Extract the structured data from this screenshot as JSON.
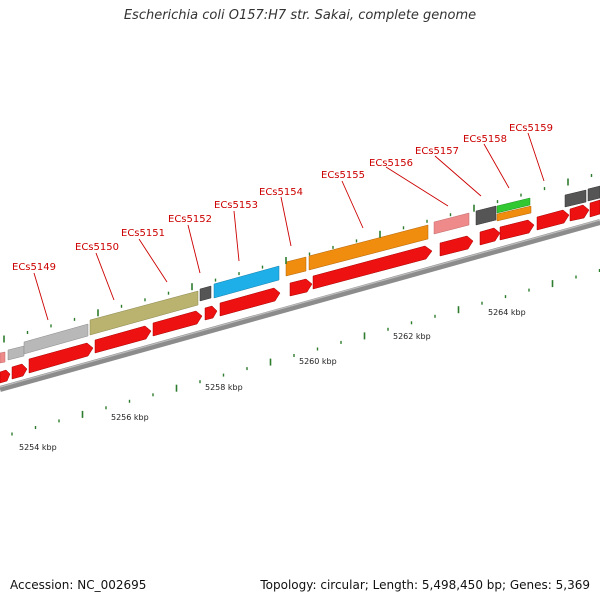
{
  "title": "Escherichia coli O157:H7 str. Sakai, complete genome",
  "footer": {
    "accession": "Accession: NC_002695",
    "topology": "Topology: circular; Length: 5,498,450 bp; Genes: 5,369"
  },
  "colors": {
    "backbone": "#8c8c8c",
    "cds": "#ee1111",
    "label": "#cc0000",
    "tick": "#2e7d2e"
  },
  "scale_labels": [
    "5254 kbp",
    "5256 kbp",
    "5258 kbp",
    "5260 kbp",
    "5262 kbp",
    "5264 kbp"
  ],
  "gene_labels": [
    "ECs5149",
    "ECs5150",
    "ECs5151",
    "ECs5152",
    "ECs5153",
    "ECs5154",
    "ECs5155",
    "ECs5156",
    "ECs5157",
    "ECs5158",
    "ECs5159"
  ],
  "cog_colors": [
    "#b8b8b8",
    "#b9b36f",
    "#555555",
    "#1eaee8",
    "#f08c0e",
    "#ee8a8a",
    "#32c832"
  ]
}
